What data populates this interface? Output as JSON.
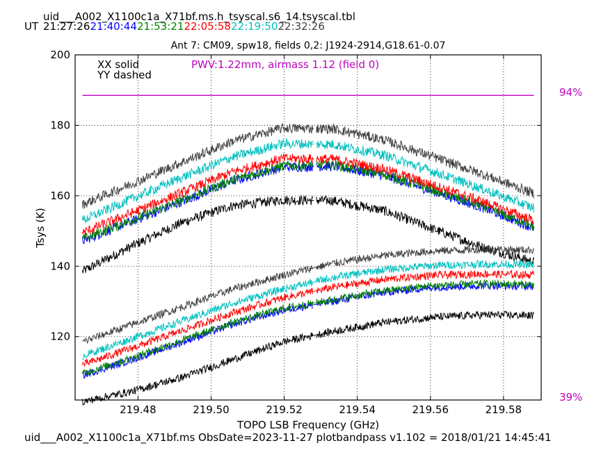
{
  "header": {
    "filename": "uid___A002_X1100c1a_X71bf.ms.h_tsyscal.s6_14.tsyscal.tbl",
    "ut_label": "UT",
    "ut_times": [
      {
        "text": "21:27:26",
        "color": "#000000"
      },
      {
        "text": "21:40:44",
        "color": "#0000ff"
      },
      {
        "text": "21:53:21",
        "color": "#008000"
      },
      {
        "text": "22:05:58",
        "color": "#ff0000"
      },
      {
        "text": "22:19:50",
        "color": "#00bfbf"
      },
      {
        "text": "22:32:26",
        "color": "#404040"
      }
    ]
  },
  "footer": "uid___A002_X1100c1a_X71bf.ms  ObsDate=2023-11-27   plotbandpass v1.102 = 2018/01/21 14:45:41",
  "chart_data": {
    "type": "line",
    "title": "Ant 7: CM09,  spw18,  fields 0,2: J1924-2914,G18.61-0.07",
    "xlabel": "TOPO LSB Frequency (GHz)",
    "ylabel": "Tsys (K)",
    "xlim": [
      219.4628,
      219.5903
    ],
    "ylim": [
      102,
      200
    ],
    "xticks": [
      219.48,
      219.5,
      219.52,
      219.54,
      219.56,
      219.58
    ],
    "xtick_labels": [
      "219.48",
      "219.50",
      "219.52",
      "219.54",
      "219.56",
      "219.58"
    ],
    "yticks": [
      120,
      140,
      160,
      180,
      200
    ],
    "ytick_labels": [
      "120",
      "140",
      "160",
      "180",
      "200"
    ],
    "grid": true,
    "legend": {
      "xx": "XX solid",
      "yy": "YY dashed",
      "placement": "top-left"
    },
    "annotation": {
      "text": "PWV:1.22mm, airmass 1.12 (field 0)",
      "color": "#bf00bf"
    },
    "right_axis_labels": [
      {
        "text": "94%",
        "color": "#bf00bf"
      },
      {
        "text": "39%",
        "color": "#bf00bf"
      }
    ],
    "transmission_line": {
      "x": [
        219.4648,
        219.5883
      ],
      "y": [
        188.5,
        188.5
      ],
      "color": "#bf00bf"
    },
    "x_start": 219.4648,
    "x_end": 219.5883,
    "gap": [
      219.5278,
      219.5288
    ],
    "series": [
      {
        "color": "#000000",
        "pol": "YY",
        "y": [
          138.5,
          145.8,
          152.5,
          157.2,
          158.8,
          158.6,
          155.8,
          150.5,
          145.3,
          141.2
        ]
      },
      {
        "color": "#0000ff",
        "pol": "YY",
        "y": [
          147.2,
          152.8,
          158.4,
          164.2,
          168.1,
          168.4,
          165.8,
          161.2,
          156.5,
          150.8
        ]
      },
      {
        "color": "#008000",
        "pol": "YY",
        "y": [
          147.6,
          153.2,
          158.8,
          164.5,
          168.5,
          168.8,
          166.1,
          161.6,
          156.9,
          151.3
        ]
      },
      {
        "color": "#ff0000",
        "pol": "YY",
        "y": [
          149.5,
          155.2,
          161.0,
          166.8,
          170.6,
          170.4,
          167.6,
          163.0,
          158.2,
          153.0
        ]
      },
      {
        "color": "#00bfbf",
        "pol": "YY",
        "y": [
          153.0,
          159.2,
          165.3,
          171.0,
          174.8,
          174.6,
          171.6,
          166.8,
          161.8,
          156.5
        ]
      },
      {
        "color": "#404040",
        "pol": "YY",
        "y": [
          157.5,
          163.5,
          169.6,
          175.5,
          179.2,
          179.0,
          175.9,
          171.0,
          166.0,
          160.6
        ]
      },
      {
        "color": "#000000",
        "pol": "XX",
        "y": [
          101.5,
          104.5,
          108.5,
          113.5,
          118.5,
          121.5,
          124.0,
          125.5,
          126.2,
          126.0
        ]
      },
      {
        "color": "#0000ff",
        "pol": "XX",
        "y": [
          109.0,
          113.5,
          118.5,
          123.5,
          127.5,
          130.0,
          132.5,
          134.0,
          134.5,
          134.3
        ]
      },
      {
        "color": "#008000",
        "pol": "XX",
        "y": [
          109.5,
          114.0,
          119.0,
          124.0,
          128.0,
          130.5,
          133.0,
          134.5,
          135.0,
          134.8
        ]
      },
      {
        "color": "#ff0000",
        "pol": "XX",
        "y": [
          112.0,
          116.8,
          121.8,
          126.8,
          131.0,
          134.0,
          136.2,
          137.4,
          137.8,
          137.5
        ]
      },
      {
        "color": "#00bfbf",
        "pol": "XX",
        "y": [
          114.5,
          119.5,
          124.5,
          129.5,
          133.5,
          136.8,
          139.0,
          140.2,
          140.6,
          140.4
        ]
      },
      {
        "color": "#404040",
        "pol": "XX",
        "y": [
          118.5,
          123.5,
          128.5,
          133.5,
          137.5,
          140.8,
          143.0,
          144.3,
          144.8,
          144.6
        ]
      }
    ]
  }
}
